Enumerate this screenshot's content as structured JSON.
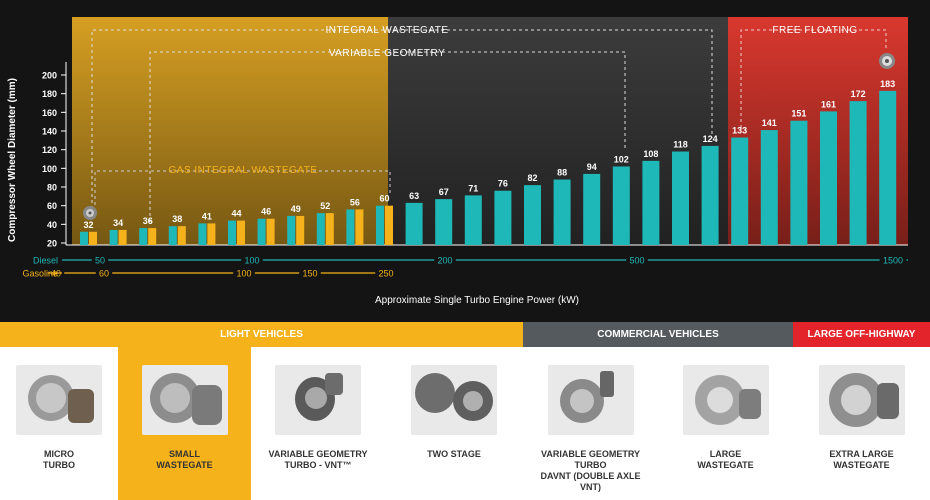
{
  "chart_data": {
    "type": "bar",
    "ylabel": "Compressor Wheel Diameter (mm)",
    "xlabel": "Approximate Single Turbo Engine Power (kW)",
    "ylim": [
      20,
      210
    ],
    "yticks": [
      20,
      40,
      60,
      80,
      100,
      120,
      140,
      160,
      180,
      200
    ],
    "series": [
      {
        "name": "Diesel",
        "color": "#1fb8b8",
        "values": [
          32,
          34,
          36,
          38,
          41,
          44,
          46,
          49,
          52,
          56,
          60,
          63,
          67,
          71,
          76,
          82,
          88,
          94,
          102,
          108,
          118,
          124,
          133,
          141,
          151,
          161,
          172,
          183
        ]
      },
      {
        "name": "Gasoline",
        "color": "#f5b21b",
        "values": [
          32,
          34,
          36,
          38,
          41,
          44,
          46,
          49,
          52,
          56,
          60
        ]
      }
    ],
    "data_labels": [
      "32",
      "34",
      "36",
      "38",
      "41",
      "44",
      "46",
      "49",
      "52",
      "56",
      "60",
      "63",
      "67",
      "71",
      "76",
      "82",
      "88",
      "94",
      "102",
      "108",
      "118",
      "124",
      "133",
      "141",
      "151",
      "161",
      "172",
      "183"
    ],
    "regions": [
      {
        "label": "INTEGRAL WASTEGATE",
        "color": "#e0a623"
      },
      {
        "label": "FREE FLOATING",
        "color": "#e03a2e"
      }
    ],
    "ranges": [
      {
        "label": "INTEGRAL WASTEGATE"
      },
      {
        "label": "VARIABLE GEOMETRY"
      },
      {
        "label": "GAS INTEGRAL WASTEGATE"
      }
    ],
    "power_axes": {
      "diesel": {
        "label": "Diesel",
        "ticks": [
          "50",
          "100",
          "200",
          "500",
          "1500"
        ],
        "color": "#1fb8b8"
      },
      "gasoline": {
        "label": "Gasoline",
        "ticks": [
          "40",
          "60",
          "100",
          "150",
          "250"
        ],
        "color": "#f5b21b"
      }
    }
  },
  "categories": [
    {
      "label": "LIGHT VEHICLES",
      "color": "#f5b21b"
    },
    {
      "label": "COMMERCIAL VEHICLES",
      "color": "#555a5f"
    },
    {
      "label": "LARGE OFF-HIGHWAY",
      "color": "#e3242b"
    }
  ],
  "products": [
    {
      "label": "MICRO\nTURBO"
    },
    {
      "label": "SMALL\nWASTEGATE"
    },
    {
      "label": "VARIABLE GEOMETRY\nTURBO - VNT™"
    },
    {
      "label": "TWO STAGE"
    },
    {
      "label": "VARIABLE GEOMETRY\nTURBO\nDAVNT (DOUBLE AXLE\nVNT)"
    },
    {
      "label": "LARGE\nWASTEGATE"
    },
    {
      "label": "EXTRA LARGE\nWASTEGATE"
    }
  ],
  "highlight_color": "#f5b21b"
}
